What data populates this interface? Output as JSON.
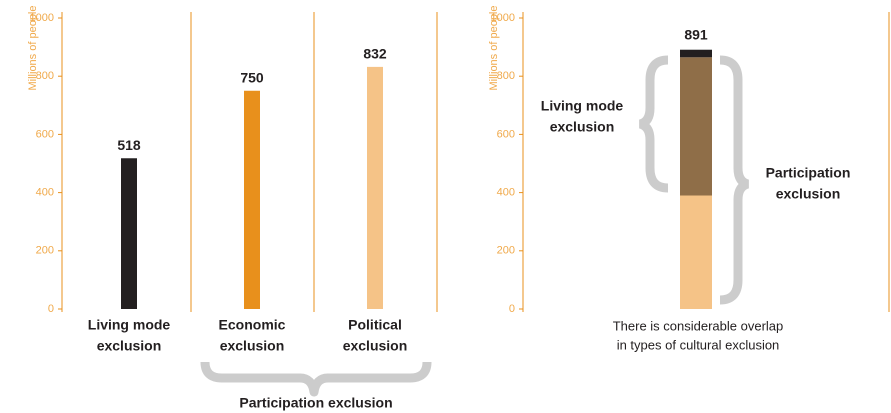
{
  "chart_data": [
    {
      "type": "bar",
      "ylabel": "Millions of people",
      "categories": [
        [
          "Living mode",
          "exclusion"
        ],
        [
          "Economic",
          "exclusion"
        ],
        [
          "Political",
          "exclusion"
        ]
      ],
      "values": [
        518,
        750,
        832
      ],
      "colors": [
        "#231f20",
        "#e8901c",
        "#f5c387"
      ],
      "ylim": [
        0,
        1000
      ],
      "yticks": [
        0,
        200,
        400,
        600,
        800,
        1000
      ],
      "annotation": "Participation exclusion"
    },
    {
      "type": "stacked_bar",
      "ylabel": "Millions of people",
      "segments": [
        {
          "value": 390,
          "color": "#f5c387"
        },
        {
          "value": 475,
          "color": "#8f6e48"
        },
        {
          "value": 26,
          "color": "#231f20"
        }
      ],
      "total": 891,
      "ylim": [
        0,
        1000
      ],
      "yticks": [
        0,
        200,
        400,
        600,
        800,
        1000
      ],
      "annotations": [
        [
          "Living mode",
          "exclusion"
        ],
        [
          "Participation",
          "exclusion"
        ]
      ],
      "caption": [
        "There is considerable overlap",
        "in types of cultural exclusion"
      ]
    }
  ]
}
